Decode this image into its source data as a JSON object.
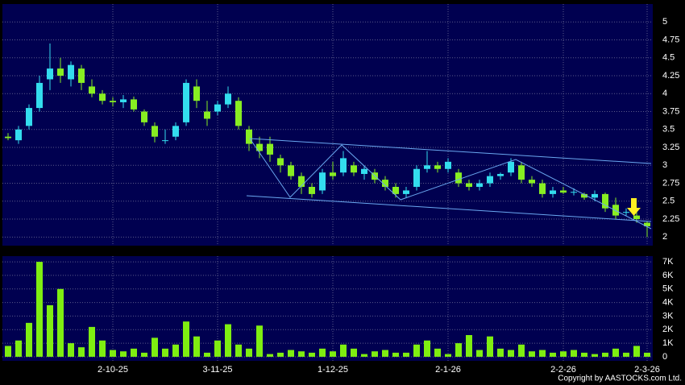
{
  "footer": "Copyright by AASTOCKS.com Ltd.",
  "chart_data": [
    {
      "type": "candlestick",
      "up_color": "#33ddee",
      "down_color": "#88ee22",
      "grid": true,
      "categories": [
        null,
        null,
        null,
        null,
        null,
        null,
        null,
        null,
        null,
        null,
        "2-10-25",
        null,
        null,
        null,
        null,
        null,
        null,
        null,
        null,
        null,
        "3-11-25",
        null,
        null,
        null,
        null,
        null,
        null,
        null,
        null,
        null,
        null,
        "1-12-25",
        null,
        null,
        null,
        null,
        null,
        null,
        null,
        null,
        null,
        null,
        "2-1-26",
        null,
        null,
        null,
        null,
        null,
        null,
        null,
        null,
        null,
        null,
        "2-2-26",
        null,
        null,
        null,
        null,
        null,
        null,
        null,
        "2-3-26"
      ],
      "open": [
        3.4,
        3.35,
        3.55,
        3.8,
        4.2,
        4.35,
        4.2,
        4.35,
        4.1,
        4.0,
        3.9,
        3.88,
        3.92,
        3.75,
        3.55,
        3.35,
        3.4,
        3.6,
        4.1,
        3.75,
        3.75,
        3.85,
        3.9,
        3.5,
        3.3,
        3.3,
        3.1,
        3.0,
        2.85,
        2.7,
        2.65,
        2.9,
        2.9,
        3.0,
        2.88,
        2.9,
        2.8,
        2.7,
        2.6,
        2.7,
        2.95,
        3.0,
        2.95,
        2.9,
        2.75,
        2.7,
        2.75,
        2.85,
        2.9,
        3.0,
        2.8,
        2.75,
        2.6,
        2.65,
        2.62,
        2.6,
        2.55,
        2.6,
        2.45,
        2.35,
        2.3,
        2.2
      ],
      "high": [
        3.45,
        3.55,
        3.85,
        4.25,
        4.7,
        4.5,
        4.45,
        4.4,
        4.2,
        4.05,
        3.95,
        3.98,
        3.96,
        3.78,
        3.6,
        3.5,
        3.6,
        4.2,
        4.2,
        3.9,
        3.9,
        4.1,
        3.95,
        3.55,
        3.4,
        3.4,
        3.15,
        3.05,
        2.9,
        2.75,
        2.95,
        3.05,
        3.2,
        3.05,
        3.0,
        2.95,
        2.85,
        2.75,
        2.7,
        3.0,
        3.2,
        3.05,
        3.1,
        2.95,
        2.8,
        2.8,
        2.9,
        2.9,
        3.1,
        3.05,
        2.85,
        2.8,
        2.7,
        2.7,
        2.68,
        2.62,
        2.65,
        2.62,
        2.55,
        2.4,
        2.35,
        2.22
      ],
      "low": [
        3.35,
        3.3,
        3.5,
        3.75,
        4.05,
        4.15,
        4.1,
        4.05,
        3.95,
        3.85,
        3.82,
        3.8,
        3.75,
        3.55,
        3.32,
        3.3,
        3.35,
        3.55,
        3.8,
        3.55,
        3.7,
        3.8,
        3.5,
        3.2,
        3.1,
        3.05,
        2.9,
        2.8,
        2.6,
        2.55,
        2.6,
        2.8,
        2.85,
        2.85,
        2.8,
        2.75,
        2.65,
        2.55,
        2.55,
        2.65,
        2.9,
        2.9,
        2.9,
        2.7,
        2.65,
        2.65,
        2.7,
        2.8,
        2.85,
        2.75,
        2.7,
        2.55,
        2.55,
        2.6,
        2.58,
        2.52,
        2.5,
        2.35,
        2.25,
        2.3,
        2.2,
        2.0
      ],
      "close": [
        3.38,
        3.5,
        3.8,
        4.15,
        4.35,
        4.25,
        4.4,
        4.15,
        4.0,
        3.9,
        3.88,
        3.92,
        3.78,
        3.6,
        3.4,
        3.35,
        3.55,
        4.15,
        3.9,
        3.65,
        3.85,
        4.0,
        3.55,
        3.3,
        3.2,
        3.15,
        3.0,
        2.85,
        2.7,
        2.6,
        2.9,
        2.85,
        3.1,
        2.9,
        2.95,
        2.8,
        2.7,
        2.6,
        2.65,
        2.95,
        3.0,
        2.95,
        3.05,
        2.75,
        2.7,
        2.75,
        2.85,
        2.88,
        3.05,
        2.8,
        2.75,
        2.6,
        2.65,
        2.62,
        2.63,
        2.55,
        2.6,
        2.4,
        2.3,
        2.35,
        2.25,
        2.15
      ],
      "ylim": [
        1.88,
        5.25
      ],
      "yticks": [
        2,
        2.25,
        2.5,
        2.75,
        3,
        3.25,
        3.5,
        3.75,
        4,
        4.25,
        4.5,
        4.75,
        5
      ]
    },
    {
      "type": "bar",
      "color": "#7fee11",
      "grid": true,
      "values": [
        800,
        1200,
        2500,
        7000,
        3800,
        5000,
        1000,
        700,
        2200,
        1200,
        500,
        400,
        600,
        300,
        1400,
        600,
        900,
        2600,
        1500,
        300,
        1200,
        2400,
        900,
        600,
        2300,
        200,
        300,
        500,
        400,
        300,
        600,
        400,
        900,
        600,
        200,
        400,
        500,
        300,
        300,
        900,
        1200,
        600,
        200,
        1000,
        1600,
        500,
        1500,
        600,
        500,
        900,
        400,
        500,
        300,
        400,
        500,
        300,
        200,
        300,
        600,
        300,
        800,
        300
      ],
      "ylim": [
        -300,
        7420
      ],
      "yticks": [
        0,
        {
          "value": 1000,
          "label": "1K"
        },
        {
          "value": 2000,
          "label": "2K"
        },
        {
          "value": 3000,
          "label": "3K"
        },
        {
          "value": 4000,
          "label": "4K"
        },
        {
          "value": 5000,
          "label": "5K"
        },
        {
          "value": 6000,
          "label": "6K"
        },
        {
          "value": 7000,
          "label": "7K"
        }
      ]
    }
  ]
}
